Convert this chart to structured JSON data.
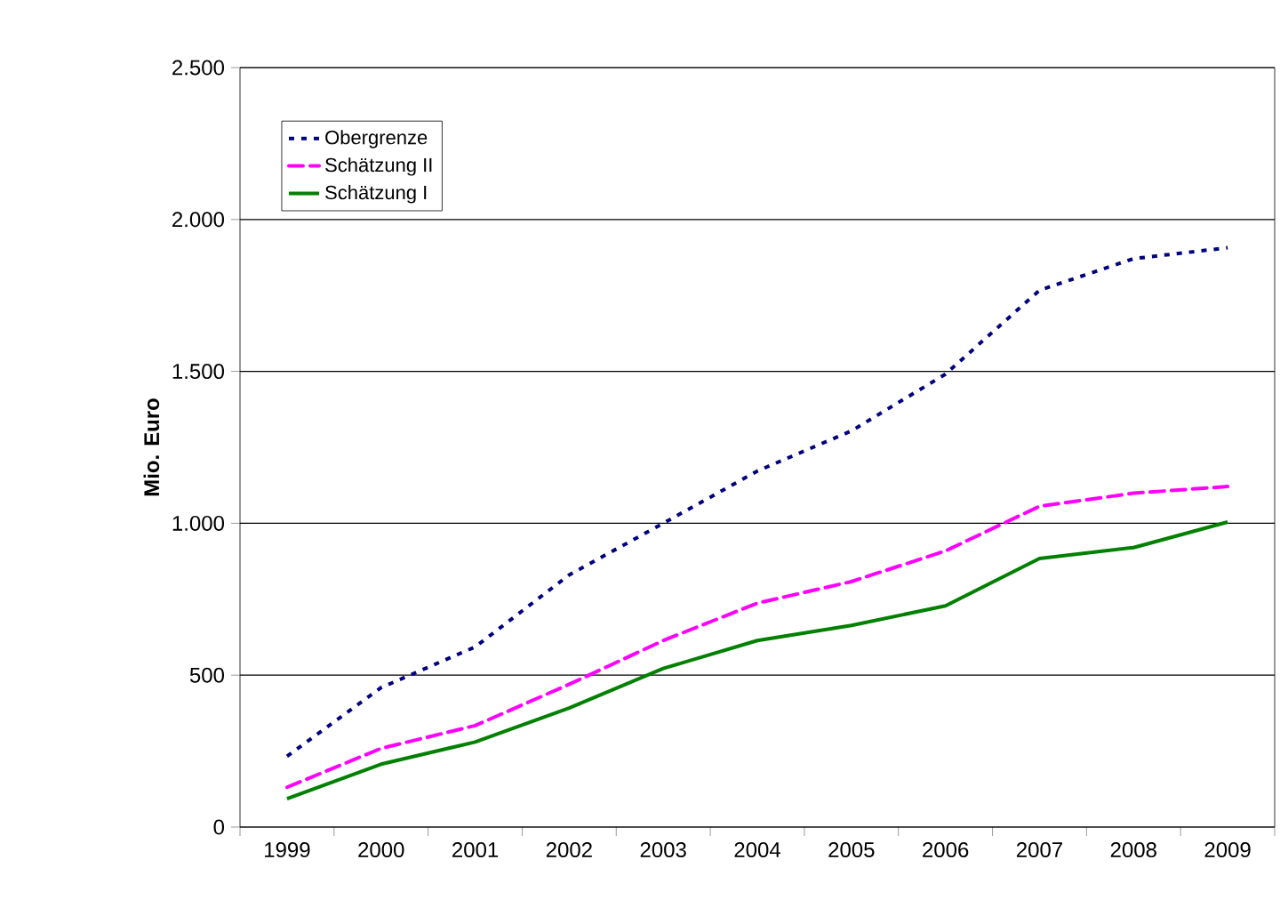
{
  "chart_data": {
    "type": "line",
    "ylabel": "Mio. Euro",
    "categories": [
      "1999",
      "2000",
      "2001",
      "2002",
      "2003",
      "2004",
      "2005",
      "2006",
      "2007",
      "2008",
      "2009"
    ],
    "series": [
      {
        "name": "Obergrenze",
        "color": "#000080",
        "line_style": "dotted",
        "values": [
          233,
          459,
          593,
          830,
          1000,
          1172,
          1304,
          1491,
          1767,
          1871,
          1907
        ]
      },
      {
        "name": "Schätzung II",
        "color": "#ff00ff",
        "line_style": "dashed",
        "values": [
          131,
          259,
          334,
          470,
          614,
          737,
          808,
          909,
          1056,
          1099,
          1121
        ]
      },
      {
        "name": "Schätzung I",
        "color": "#008000",
        "line_style": "solid",
        "values": [
          93,
          207,
          280,
          392,
          522,
          614,
          664,
          728,
          884,
          920,
          1004
        ]
      }
    ],
    "ylim": [
      0,
      2500
    ],
    "yticks": [
      0,
      500,
      {
        "value": 1000,
        "label": "1.000"
      },
      {
        "value": 1500,
        "label": "1.500"
      },
      {
        "value": 2000,
        "label": "2.000"
      },
      {
        "value": 2500,
        "label": "2.500"
      }
    ],
    "grid": "y",
    "legend": "top left",
    "marker": "none"
  }
}
